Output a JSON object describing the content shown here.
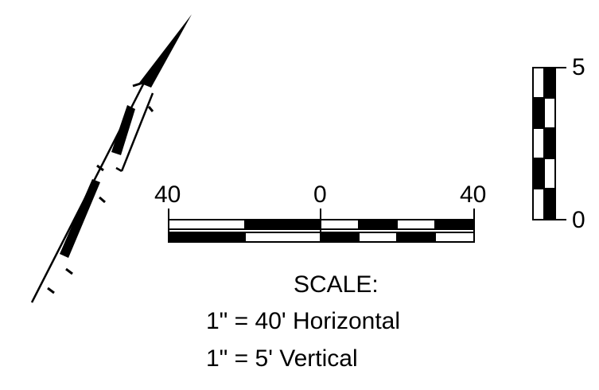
{
  "horizontal_scale": {
    "labels": [
      "40",
      "0",
      "40"
    ]
  },
  "vertical_scale": {
    "labels": [
      "5",
      "0"
    ]
  },
  "scale_note": {
    "heading": "SCALE:",
    "horizontal": "1\" = 40' Horizontal",
    "vertical": "1\" = 5' Vertical"
  },
  "colors": {
    "ink": "#000000",
    "background": "#ffffff"
  }
}
